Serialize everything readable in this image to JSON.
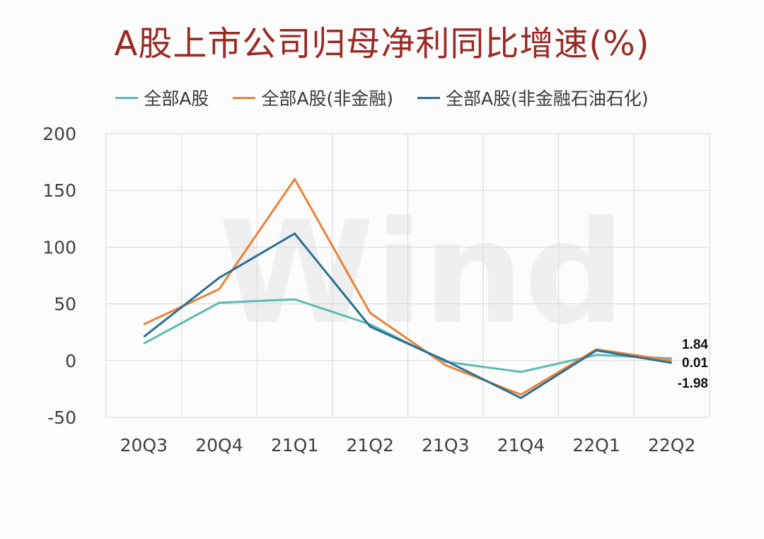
{
  "chart_data": {
    "type": "line",
    "title": "A股上市公司归母净利同比增速(%)",
    "watermark": "Wind",
    "categories": [
      "20Q3",
      "20Q4",
      "21Q1",
      "21Q2",
      "21Q3",
      "21Q4",
      "22Q1",
      "22Q2"
    ],
    "ylim": [
      -50,
      200
    ],
    "yticks": [
      "200",
      "150",
      "100",
      "50",
      "0",
      "-50"
    ],
    "grid": true,
    "legend_position": "top",
    "series": [
      {
        "name": "全部A股",
        "color": "#5bbcb4",
        "values": [
          15,
          51,
          54,
          32,
          -1,
          -10,
          5,
          1.84
        ]
      },
      {
        "name": "全部A股(非金融)",
        "color": "#ea8337",
        "values": [
          32,
          63,
          160,
          42,
          -4,
          -30,
          10,
          0.01
        ]
      },
      {
        "name": "全部A股(非金融石油石化)",
        "color": "#2a6f96",
        "values": [
          21,
          73,
          112,
          30,
          0,
          -33,
          9,
          -1.98
        ]
      }
    ],
    "end_labels": [
      "1.84",
      "0.01",
      "-1.98"
    ]
  }
}
